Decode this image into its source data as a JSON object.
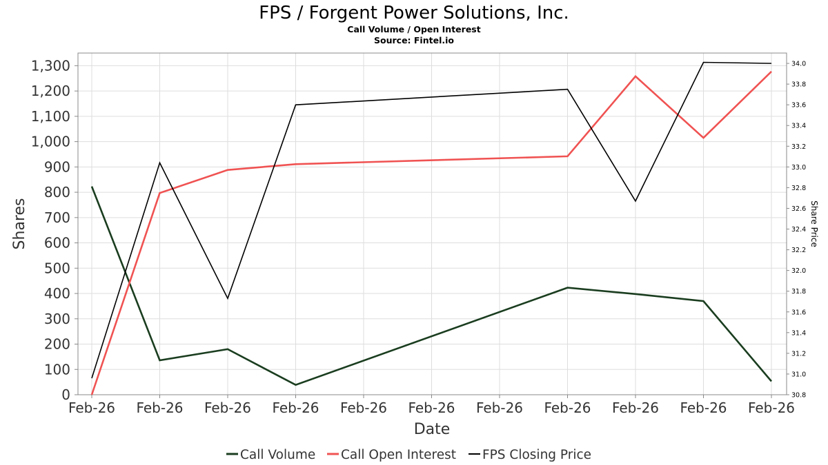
{
  "chart_data": {
    "type": "line",
    "title": "FPS / Forgent Power Solutions, Inc.",
    "subtitle": "Call Volume / Open Interest",
    "source": "Source: Fintel.io",
    "xlabel": "Date",
    "ylabel": "Shares",
    "y2label": "Share Price",
    "categories": [
      "Feb-26",
      "Feb-26",
      "Feb-26",
      "Feb-26",
      "Feb-26",
      "Feb-26",
      "Feb-26",
      "Feb-26",
      "Feb-26",
      "Feb-26",
      "Feb-26"
    ],
    "ylim": [
      0,
      1350
    ],
    "yticks": [
      0,
      100,
      200,
      300,
      400,
      500,
      600,
      700,
      800,
      900,
      1000,
      1100,
      1200,
      1300
    ],
    "ytick_labels": [
      "0",
      "100",
      "200",
      "300",
      "400",
      "500",
      "600",
      "700",
      "800",
      "900",
      "1,000",
      "1,100",
      "1,200",
      "1,300"
    ],
    "y2lim": [
      30.8,
      34.1
    ],
    "y2ticks": [
      30.8,
      31.0,
      31.2,
      31.4,
      31.6,
      31.8,
      32.0,
      32.2,
      32.4,
      32.6,
      32.8,
      33.0,
      33.2,
      33.4,
      33.6,
      33.8,
      34.0
    ],
    "y2tick_labels": [
      "30.8",
      "31.0",
      "31.2",
      "31.4",
      "31.6",
      "31.8",
      "32.0",
      "32.2",
      "32.4",
      "32.6",
      "32.8",
      "33.0",
      "33.2",
      "33.4",
      "33.6",
      "33.8",
      "34.0"
    ],
    "grid": true,
    "legend_position": "bottom",
    "series": [
      {
        "name": "Call Volume",
        "axis": "left",
        "color": "#1a3d1f",
        "points": [
          [
            0,
            823
          ],
          [
            1,
            136
          ],
          [
            2,
            180
          ],
          [
            3,
            39
          ],
          [
            7,
            423
          ],
          [
            8,
            398
          ],
          [
            9,
            370
          ],
          [
            10,
            53
          ]
        ]
      },
      {
        "name": "Call Open Interest",
        "axis": "left",
        "color": "#f05252",
        "points": [
          [
            0,
            0
          ],
          [
            1,
            797
          ],
          [
            2,
            888
          ],
          [
            3,
            911
          ],
          [
            7,
            942
          ],
          [
            8,
            1258
          ],
          [
            9,
            1015
          ],
          [
            10,
            1277
          ]
        ]
      },
      {
        "name": "FPS Closing Price",
        "axis": "right",
        "color": "#000000",
        "points": [
          [
            0,
            30.96
          ],
          [
            1,
            33.04
          ],
          [
            2,
            31.73
          ],
          [
            3,
            33.6
          ],
          [
            7,
            33.75
          ],
          [
            8,
            32.67
          ],
          [
            9,
            34.01
          ],
          [
            10,
            34.0
          ]
        ]
      }
    ]
  }
}
